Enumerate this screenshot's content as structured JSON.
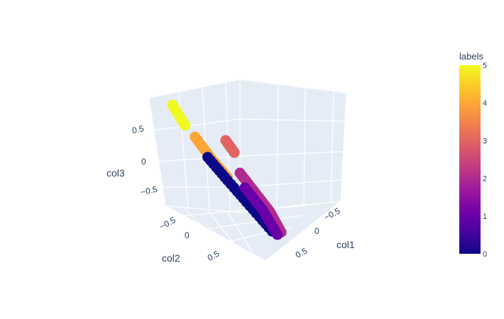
{
  "chart_data": {
    "type": "scatter",
    "subtype": "scatter3d",
    "title": "",
    "axes": {
      "x": {
        "title": "col1",
        "ticks": [
          "−0.5",
          "0",
          "0.5"
        ]
      },
      "y": {
        "title": "col2",
        "ticks": [
          "−0.5",
          "0",
          "0.5"
        ]
      },
      "z": {
        "title": "col3",
        "ticks": [
          "−0.5",
          "0",
          "0.5"
        ]
      }
    },
    "colorbar": {
      "title": "labels",
      "ticks": [
        "0",
        "1",
        "2",
        "3",
        "4",
        "5"
      ],
      "range": [
        0,
        5
      ],
      "colorscale": [
        "#0d0887",
        "#46039f",
        "#7201a8",
        "#9c179e",
        "#bd3786",
        "#d8576b",
        "#ed7953",
        "#fb9f3a",
        "#fdca26",
        "#f0f921"
      ]
    },
    "series": [
      {
        "label": 5,
        "color": "#f0f921",
        "x": [
          -0.8,
          -0.75,
          -0.7
        ],
        "y": [
          -0.15,
          -0.1,
          -0.05
        ],
        "z": [
          0.8,
          0.7,
          0.6
        ]
      },
      {
        "label": 4,
        "color": "#fca636",
        "x": [
          -0.6,
          -0.45,
          -0.3
        ],
        "y": [
          0.0,
          0.1,
          0.2
        ],
        "z": [
          0.5,
          0.3,
          0.15
        ]
      },
      {
        "label": 0,
        "color": "#0d0887",
        "x": [
          -0.5,
          -0.3,
          -0.1,
          0.1
        ],
        "y": [
          0.1,
          0.2,
          0.35,
          0.5
        ],
        "z": [
          0.3,
          0.1,
          -0.1,
          -0.3
        ]
      },
      {
        "label": 3,
        "color": "#e16462",
        "x": [
          0.35,
          0.4
        ],
        "y": [
          -0.8,
          -0.7
        ],
        "z": [
          0.35,
          0.25
        ]
      },
      {
        "label": 2,
        "color": "#b12a90",
        "x": [
          0.4,
          0.5,
          0.6,
          0.65
        ],
        "y": [
          -0.6,
          -0.45,
          -0.3,
          -0.15
        ],
        "z": [
          0.0,
          -0.15,
          -0.3,
          -0.5
        ]
      },
      {
        "label": 1,
        "color": "#6a00a8",
        "x": [
          0.2,
          0.3,
          0.4
        ],
        "y": [
          -0.2,
          0.0,
          0.15
        ],
        "z": [
          -0.05,
          -0.2,
          -0.45
        ]
      }
    ]
  }
}
